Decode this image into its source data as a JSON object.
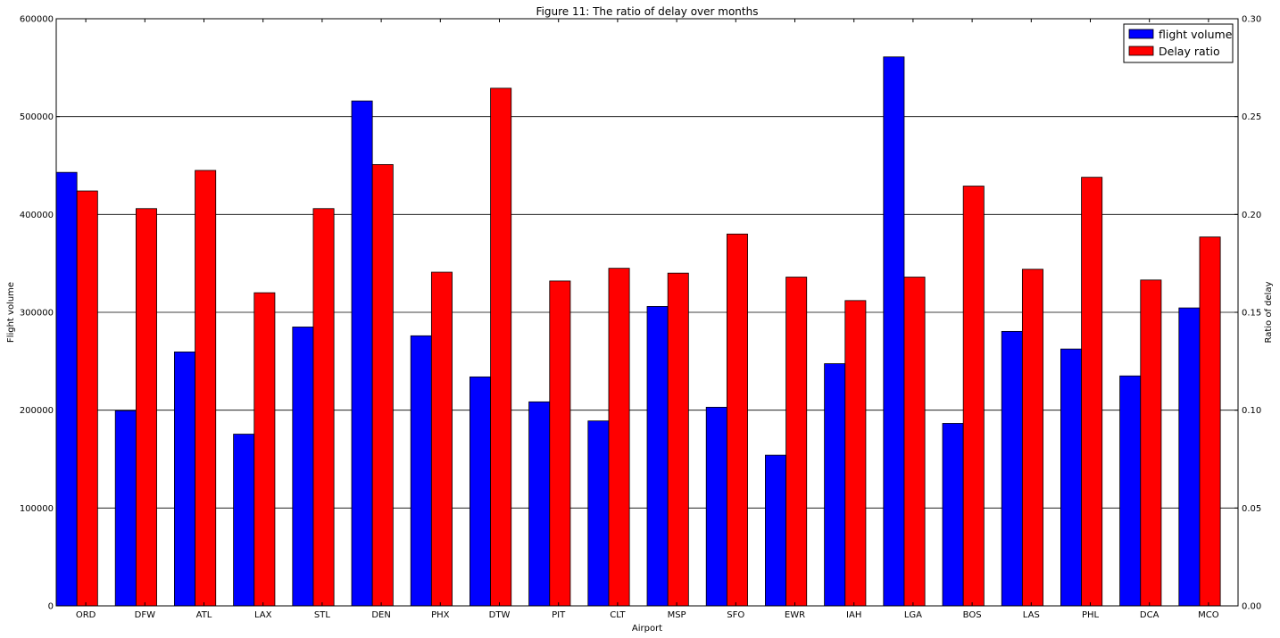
{
  "chart_data": {
    "type": "bar",
    "title": "Figure 11: The ratio of delay over months",
    "xlabel": "Airport",
    "ylabel_left": "Flight volume",
    "ylabel_right": "Ratio of delay",
    "ylim_left": [
      0,
      600000
    ],
    "ylim_right": [
      0,
      0.3
    ],
    "yticks_left": [
      "0",
      "100000",
      "200000",
      "300000",
      "400000",
      "500000",
      "600000"
    ],
    "yticks_right": [
      "0.00",
      "0.05",
      "0.10",
      "0.15",
      "0.20",
      "0.25",
      "0.30"
    ],
    "grid": "horizontal",
    "legend_position": "top-right",
    "categories": [
      "ORD",
      "DFW",
      "ATL",
      "LAX",
      "STL",
      "DEN",
      "PHX",
      "DTW",
      "PIT",
      "CLT",
      "MSP",
      "SFO",
      "EWR",
      "IAH",
      "LGA",
      "BOS",
      "LAS",
      "PHL",
      "DCA",
      "MCO"
    ],
    "series": [
      {
        "name": "flight volume",
        "axis": "left",
        "color": "#0000ff",
        "values": [
          443000,
          199500,
          259500,
          175500,
          285000,
          516000,
          276000,
          234000,
          208500,
          189000,
          306000,
          203000,
          154000,
          247500,
          561000,
          186500,
          280500,
          262500,
          235000,
          304500
        ]
      },
      {
        "name": "Delay ratio",
        "axis": "right",
        "color": "#ff0000",
        "values": [
          0.212,
          0.203,
          0.2225,
          0.16,
          0.203,
          0.2255,
          0.1705,
          0.2645,
          0.166,
          0.1725,
          0.17,
          0.19,
          0.168,
          0.156,
          0.168,
          0.2145,
          0.172,
          0.219,
          0.1665,
          0.1885
        ]
      }
    ]
  }
}
